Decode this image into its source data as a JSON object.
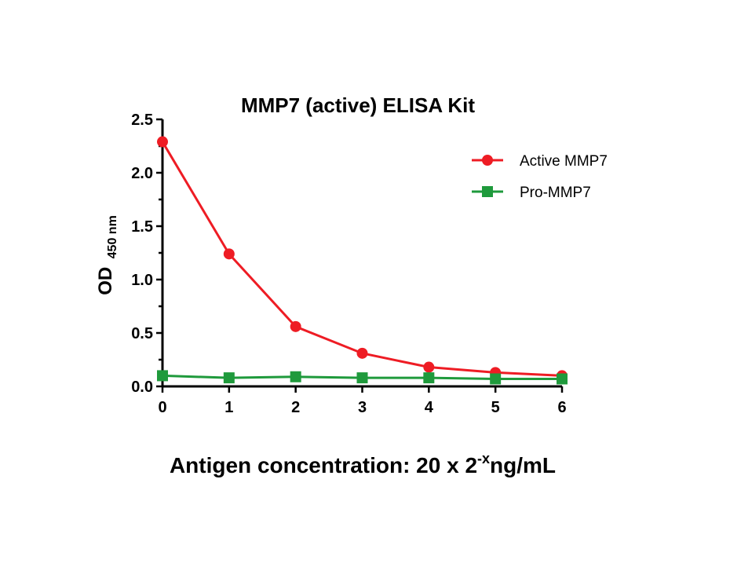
{
  "chart_data": {
    "type": "line",
    "title": "MMP7 (active) ELISA Kit",
    "xlabel": {
      "main": "Antigen concentration: 20 x 2",
      "superscript": "-x",
      "suffix": "ng/mL"
    },
    "ylabel": {
      "main": "OD",
      "subscript": "450 nm"
    },
    "x": [
      0,
      1,
      2,
      3,
      4,
      5,
      6
    ],
    "xlim": [
      0,
      6
    ],
    "ylim": [
      0,
      2.5
    ],
    "x_ticks": [
      "0",
      "1",
      "2",
      "3",
      "4",
      "5",
      "6"
    ],
    "y_ticks": [
      "0.0",
      "0.5",
      "1.0",
      "1.5",
      "2.0",
      "2.5"
    ],
    "grid": false,
    "legend_position": "top-right",
    "series": [
      {
        "name": "Active MMP7",
        "color": "#ee1c24",
        "marker": "circle",
        "values": [
          2.29,
          1.24,
          0.56,
          0.31,
          0.18,
          0.13,
          0.1
        ]
      },
      {
        "name": "Pro-MMP7",
        "color": "#1f9a3c",
        "marker": "square",
        "values": [
          0.1,
          0.08,
          0.09,
          0.08,
          0.08,
          0.07,
          0.07
        ]
      }
    ]
  }
}
